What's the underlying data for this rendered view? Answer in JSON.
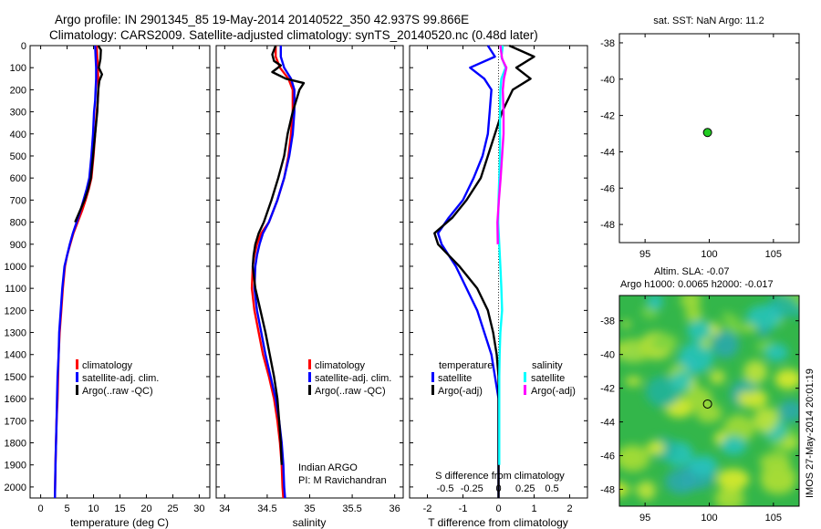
{
  "header": {
    "title_line1": "Argo profile: IN 2901345_85 19-May-2014 20140522_350 42.937S 99.866E",
    "title_line2": "Climatology: CARS2009. Satellite-adjusted climatology: synTS_20140520.nc (0.48d later)"
  },
  "side_label": "IMOS 27-May-2014 20:01:19",
  "colors": {
    "climatology": "#ff0000",
    "satellite": "#0000ff",
    "argo": "#000000",
    "salinity_satellite": "#00ffff",
    "salinity_argo": "#ff00ff",
    "float_marker": "#22cc22"
  },
  "chart_data": [
    {
      "type": "line",
      "xlabel": "temperature (deg C)",
      "ylabel": "",
      "xlim": [
        -2,
        32
      ],
      "ylim": [
        2050,
        0
      ],
      "xticks": [
        0,
        5,
        10,
        15,
        20,
        25,
        30
      ],
      "yticks": [
        0,
        100,
        200,
        300,
        400,
        500,
        600,
        700,
        800,
        900,
        1000,
        1100,
        1200,
        1300,
        1400,
        1500,
        1600,
        1700,
        1800,
        1900,
        2000
      ],
      "legend": [
        "climatology",
        "satellite-adj. clim.",
        "Argo(..raw -QC)"
      ],
      "legend_position": "lower-right",
      "series": [
        {
          "name": "climatology",
          "color": "#ff0000",
          "x": [
            10.6,
            10.7,
            10.8,
            10.9,
            10.9,
            10.8,
            10.6,
            10.3,
            10.0,
            9.6,
            9.1,
            8.5,
            7.8,
            7.0,
            6.2,
            5.6,
            5.0,
            4.6,
            4.2,
            3.9,
            3.6,
            3.4,
            3.3,
            3.2,
            3.0,
            2.9,
            2.8,
            2.7
          ],
          "y": [
            0,
            50,
            100,
            150,
            200,
            250,
            300,
            400,
            500,
            600,
            650,
            700,
            750,
            800,
            850,
            900,
            950,
            1000,
            1100,
            1200,
            1300,
            1400,
            1500,
            1600,
            1700,
            1800,
            1900,
            2050
          ]
        },
        {
          "name": "satellite-adj. clim.",
          "color": "#0000ff",
          "x": [
            10.3,
            10.4,
            10.5,
            10.5,
            10.4,
            10.3,
            10.1,
            9.9,
            9.6,
            9.2,
            8.7,
            8.1,
            7.5,
            6.8,
            6.1,
            5.5,
            5.0,
            4.5,
            4.1,
            3.8,
            3.5,
            3.4,
            3.2,
            3.1,
            3.0,
            2.9,
            2.8,
            2.7
          ],
          "y": [
            0,
            50,
            100,
            150,
            200,
            250,
            300,
            400,
            500,
            600,
            650,
            700,
            750,
            800,
            850,
            900,
            950,
            1000,
            1100,
            1200,
            1300,
            1400,
            1500,
            1600,
            1700,
            1800,
            1900,
            2050
          ]
        },
        {
          "name": "Argo(..raw -QC)",
          "color": "#000000",
          "x": [
            10.9,
            11.4,
            11.3,
            11.0,
            11.6,
            11.1,
            10.9,
            10.7,
            10.3,
            9.9,
            9.5,
            9.0,
            8.3,
            7.4,
            6.5
          ],
          "y": [
            0,
            20,
            60,
            100,
            130,
            160,
            200,
            300,
            400,
            500,
            600,
            650,
            700,
            750,
            800
          ]
        }
      ]
    },
    {
      "type": "line",
      "xlabel": "salinity",
      "xlim": [
        33.9,
        36.1
      ],
      "ylim": [
        2050,
        0
      ],
      "xticks": [
        34,
        34.5,
        35,
        35.5,
        36
      ],
      "legend": [
        "climatology",
        "satellite-adj. clim.",
        "Argo(..raw -QC)"
      ],
      "legend_position": "lower-right",
      "annotation": [
        "Indian ARGO",
        "PI: M Ravichandran"
      ],
      "series": [
        {
          "name": "climatology",
          "color": "#ff0000",
          "x": [
            34.6,
            34.6,
            34.65,
            34.75,
            34.8,
            34.8,
            34.78,
            34.75,
            34.7,
            34.62,
            34.52,
            34.43,
            34.38,
            34.35,
            34.33,
            34.32,
            34.35,
            34.4,
            34.45,
            34.52,
            34.58,
            34.62,
            34.65,
            34.67,
            34.68,
            34.69
          ],
          "y": [
            0,
            50,
            100,
            150,
            200,
            300,
            400,
            500,
            600,
            700,
            800,
            850,
            900,
            950,
            1000,
            1100,
            1200,
            1300,
            1400,
            1500,
            1600,
            1700,
            1800,
            1900,
            2000,
            2050
          ]
        },
        {
          "name": "satellite-adj. clim.",
          "color": "#0000ff",
          "x": [
            34.66,
            34.66,
            34.7,
            34.78,
            34.82,
            34.82,
            34.8,
            34.76,
            34.7,
            34.62,
            34.52,
            34.45,
            34.41,
            34.38,
            34.36,
            34.35,
            34.38,
            34.43,
            34.48,
            34.54,
            34.6,
            34.64,
            34.67,
            34.69,
            34.7,
            34.71
          ],
          "y": [
            0,
            50,
            100,
            150,
            200,
            300,
            400,
            500,
            600,
            700,
            800,
            850,
            900,
            950,
            1000,
            1100,
            1200,
            1300,
            1400,
            1500,
            1600,
            1700,
            1800,
            1900,
            2000,
            2050
          ]
        },
        {
          "name": "Argo(..raw -QC)",
          "color": "#000000",
          "x": [
            34.6,
            34.56,
            34.58,
            34.66,
            34.56,
            34.72,
            34.93,
            34.88,
            34.8,
            34.74,
            34.7,
            34.63,
            34.55,
            34.46,
            34.4,
            34.36,
            34.34,
            34.33,
            34.36,
            34.42,
            34.48,
            34.53,
            34.58,
            34.62,
            34.64,
            34.66,
            34.67
          ],
          "y": [
            0,
            40,
            70,
            90,
            120,
            150,
            170,
            200,
            300,
            400,
            500,
            600,
            700,
            800,
            850,
            900,
            950,
            1000,
            1100,
            1200,
            1300,
            1400,
            1500,
            1600,
            1700,
            1800,
            1900
          ]
        }
      ]
    },
    {
      "type": "line",
      "xlabel": "T difference from climatology",
      "xlabel2": "S difference from climatology",
      "xlim": [
        -2.5,
        2.5
      ],
      "ylim": [
        2050,
        0
      ],
      "xticks": [
        -2,
        -1,
        0,
        1,
        2
      ],
      "xticks2": [
        "-0.5",
        "-0.25",
        "0",
        "0.25",
        "0.5"
      ],
      "legend_temperature": {
        "header": "temperature",
        "items": [
          "satellite",
          "Argo(-adj)"
        ]
      },
      "legend_salinity": {
        "header": "salinity",
        "items": [
          "satellite",
          "Argo(-adj)"
        ]
      },
      "series": [
        {
          "name": "satellite",
          "quantity": "temperature",
          "color": "#0000ff",
          "x": [
            -0.3,
            -0.1,
            -0.8,
            -0.4,
            -0.2,
            -0.25,
            -0.3,
            -0.45,
            -0.7,
            -1.0,
            -1.4,
            -1.7,
            -1.6,
            -1.2,
            -0.9,
            -0.6,
            -0.4,
            -0.2,
            -0.1,
            0.0,
            0.0,
            0.0,
            0.0,
            0.0,
            0.0
          ],
          "y": [
            0,
            50,
            100,
            150,
            200,
            300,
            400,
            500,
            600,
            700,
            780,
            850,
            900,
            1000,
            1100,
            1200,
            1300,
            1400,
            1500,
            1600,
            1700,
            1800,
            1900,
            2000,
            2050
          ]
        },
        {
          "name": "Argo(-adj)",
          "quantity": "temperature",
          "color": "#000000",
          "x": [
            0.3,
            1.0,
            0.5,
            0.9,
            0.4,
            0.1,
            -0.1,
            -0.3,
            -0.5,
            -0.9,
            -1.3,
            -1.8,
            -1.7,
            -1.1,
            -0.6,
            -0.3,
            -0.15,
            -0.05,
            0.0,
            0.0,
            0.0,
            0.0,
            0.0,
            0.0,
            0.0
          ],
          "y": [
            0,
            50,
            100,
            150,
            200,
            300,
            400,
            500,
            600,
            700,
            780,
            850,
            900,
            1000,
            1100,
            1200,
            1300,
            1400,
            1500,
            1600,
            1700,
            1800,
            1900,
            2000,
            2050
          ]
        },
        {
          "name": "satellite",
          "quantity": "salinity",
          "color": "#00ffff",
          "x": [
            0.12,
            0.08,
            0.2,
            0.08,
            0.05,
            0.04,
            0.04,
            0.04,
            0.02,
            0.0,
            -0.01,
            0.02,
            0.05,
            0.08,
            0.1,
            0.05,
            0.03,
            0.02,
            0.02,
            0.02,
            0.02,
            0.02
          ],
          "y": [
            0,
            50,
            100,
            150,
            200,
            300,
            400,
            500,
            600,
            700,
            800,
            900,
            1000,
            1100,
            1200,
            1300,
            1400,
            1500,
            1600,
            1700,
            1800,
            1900
          ]
        },
        {
          "name": "Argo(-adj)",
          "quantity": "salinity",
          "color": "#ff00ff",
          "x": [
            0.05,
            0.1,
            0.22,
            0.15,
            0.12,
            0.14,
            0.14,
            0.1,
            0.06,
            0.01,
            -0.03,
            -0.02
          ],
          "y": [
            0,
            60,
            100,
            150,
            200,
            300,
            400,
            500,
            600,
            700,
            800,
            900
          ]
        }
      ]
    },
    {
      "type": "scatter",
      "title": "sat. SST: NaN Argo: 11.2",
      "xlim": [
        93,
        107
      ],
      "ylim": [
        -49,
        -37.5
      ],
      "xticks": [
        95,
        100,
        105
      ],
      "yticks": [
        -38,
        -40,
        -42,
        -44,
        -46,
        -48
      ],
      "points": [
        {
          "x": 99.866,
          "y": -42.937
        }
      ]
    },
    {
      "type": "heatmap",
      "title_line1": "Altim. SLA: -0.07",
      "title_line2": "Argo h1000: 0.0065 h2000: -0.017",
      "xlim": [
        93,
        107
      ],
      "ylim": [
        -49,
        -36.5
      ],
      "xticks": [
        95,
        100,
        105
      ],
      "yticks": [
        -38,
        -40,
        -42,
        -44,
        -46,
        -48
      ],
      "points": [
        {
          "x": 99.866,
          "y": -42.937
        }
      ]
    }
  ]
}
